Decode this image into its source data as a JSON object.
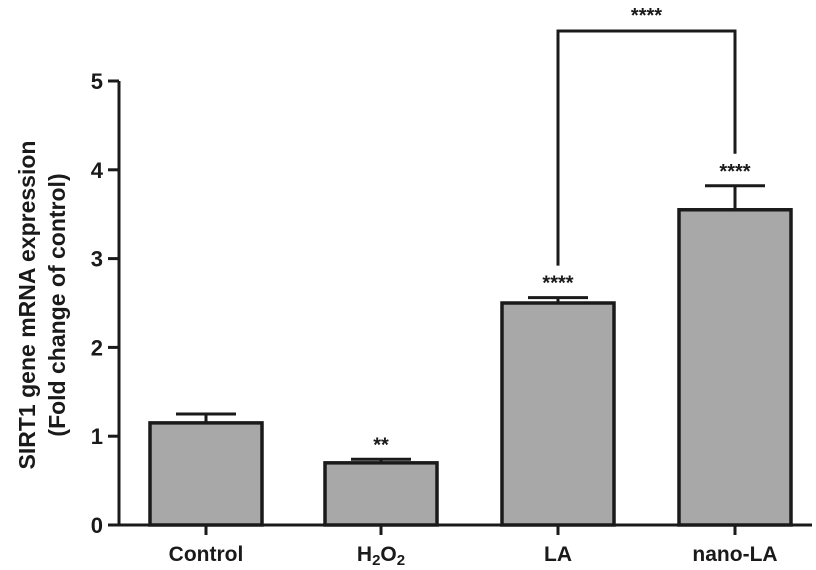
{
  "chart_data": {
    "type": "bar",
    "categories": [
      "Control",
      "H2O2",
      "LA",
      "nano-LA"
    ],
    "category_display": [
      {
        "text": "Control"
      },
      {
        "base": "H",
        "sub1": "2",
        "mid": "O",
        "sub2": "2"
      },
      {
        "text": "LA"
      },
      {
        "text": "nano-LA"
      }
    ],
    "values": [
      1.15,
      0.7,
      2.5,
      3.55
    ],
    "error": [
      0.1,
      0.04,
      0.06,
      0.27
    ],
    "significance": [
      "",
      "**",
      "****",
      "****"
    ],
    "comparison": {
      "from": "LA",
      "to": "nano-LA",
      "label": "****"
    },
    "ylabel_line1": "SIRT1 gene mRNA expression",
    "ylabel_line2": "(Fold change of control)",
    "ylim": [
      0,
      5
    ],
    "yticks": [
      0,
      1,
      2,
      3,
      4,
      5
    ],
    "bar_color": "#a8a8a8",
    "edge_color": "#1a1a1a",
    "grid": false,
    "legend": false
  }
}
